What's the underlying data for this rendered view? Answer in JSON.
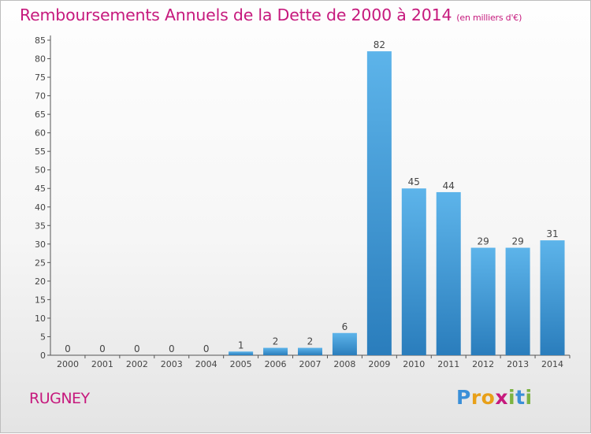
{
  "header": {
    "title": "Remboursements Annuels de la Dette de 2000 à 2014",
    "unit": "(en milliers d'€)"
  },
  "footer": {
    "commune": "RUGNEY",
    "logo_letters": [
      "P",
      "r",
      "o",
      "x",
      "i",
      "t",
      "i"
    ]
  },
  "colors": {
    "title": "#c6197d",
    "bar_top": "#5db4ea",
    "bar_bottom": "#2a7dbc",
    "logo": [
      "#3a8fd8",
      "#e8a019",
      "#e8a019",
      "#c6197d",
      "#7cb342",
      "#3a8fd8",
      "#7cb342"
    ]
  },
  "chart_data": {
    "type": "bar",
    "title": "Remboursements Annuels de la Dette de 2000 à 2014",
    "subtitle": "(en milliers d'€)",
    "categories": [
      "2000",
      "2001",
      "2002",
      "2003",
      "2004",
      "2005",
      "2006",
      "2007",
      "2008",
      "2009",
      "2010",
      "2011",
      "2012",
      "2013",
      "2014"
    ],
    "values": [
      0,
      0,
      0,
      0,
      0,
      1,
      2,
      2,
      6,
      82,
      45,
      44,
      29,
      29,
      31
    ],
    "ylim": [
      0,
      85
    ],
    "yticks": [
      0,
      5,
      10,
      15,
      20,
      25,
      30,
      35,
      40,
      45,
      50,
      55,
      60,
      65,
      70,
      75,
      80,
      85
    ],
    "grid": false,
    "legend": "none"
  }
}
